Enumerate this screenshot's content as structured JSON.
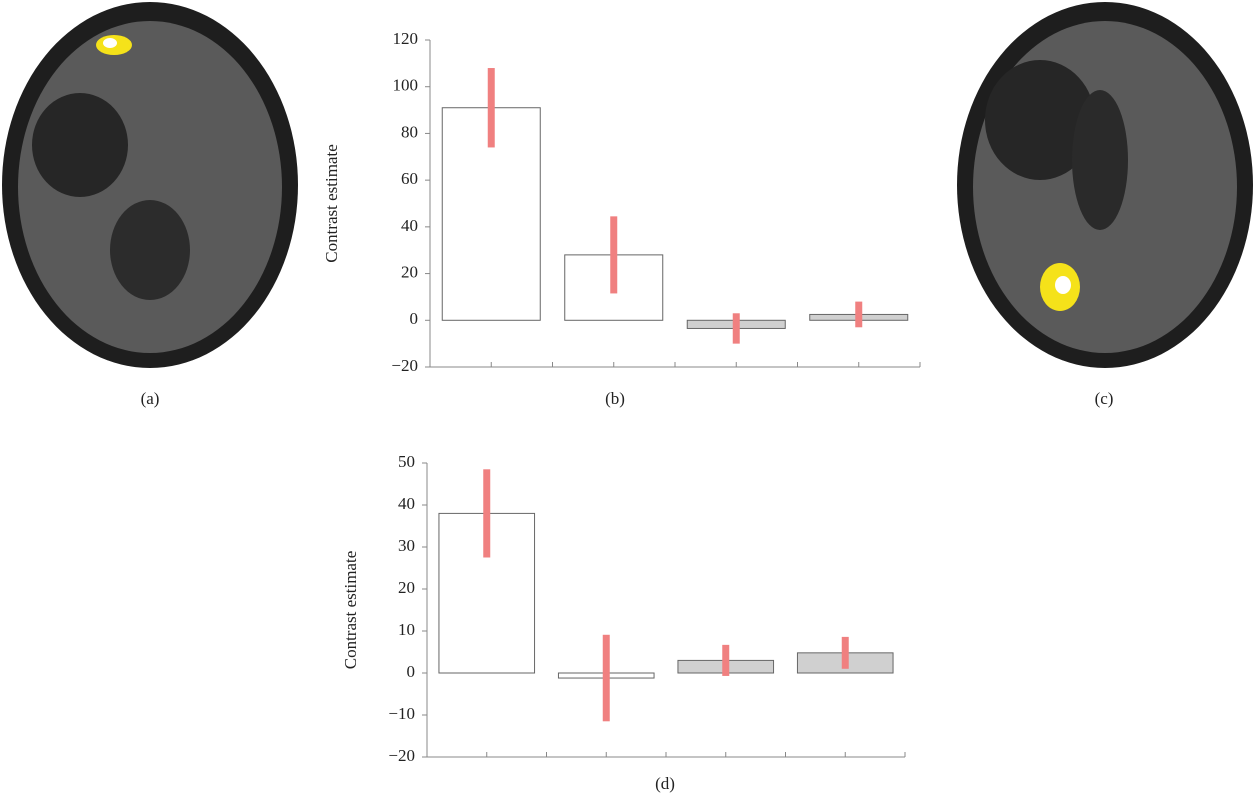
{
  "images": [
    {
      "caption": "(a)"
    },
    {
      "caption": "(c)"
    }
  ],
  "chart_data": [
    {
      "type": "bar",
      "caption": "(b)",
      "y_label": "Contrast estimate",
      "categories": [
        null,
        null,
        null,
        null
      ],
      "values": [
        91,
        28,
        -3.5,
        2.5
      ],
      "errors": [
        17,
        16.5,
        6.5,
        5.5
      ],
      "colors": [
        "#ffffff",
        "#ffffff",
        "#d0d0d0",
        "#d0d0d0"
      ],
      "error_color": "#f08080",
      "ylim": [
        -20,
        120
      ],
      "yticks": [
        {
          "value": -20,
          "label": "−20"
        },
        0,
        20,
        40,
        60,
        80,
        100,
        120
      ]
    },
    {
      "type": "bar",
      "caption": "(d)",
      "y_label": "Contrast estimate",
      "categories": [
        null,
        null,
        null,
        null
      ],
      "values": [
        38,
        -1.2,
        3,
        4.8
      ],
      "errors": [
        10.5,
        10.3,
        3.7,
        3.8
      ],
      "colors": [
        "#ffffff",
        "#ffffff",
        "#d0d0d0",
        "#d0d0d0"
      ],
      "error_color": "#f08080",
      "ylim": [
        -20,
        50
      ],
      "yticks": [
        {
          "value": -20,
          "label": "−20"
        },
        {
          "value": -10,
          "label": "−10"
        },
        0,
        10,
        20,
        30,
        40,
        50
      ]
    }
  ]
}
